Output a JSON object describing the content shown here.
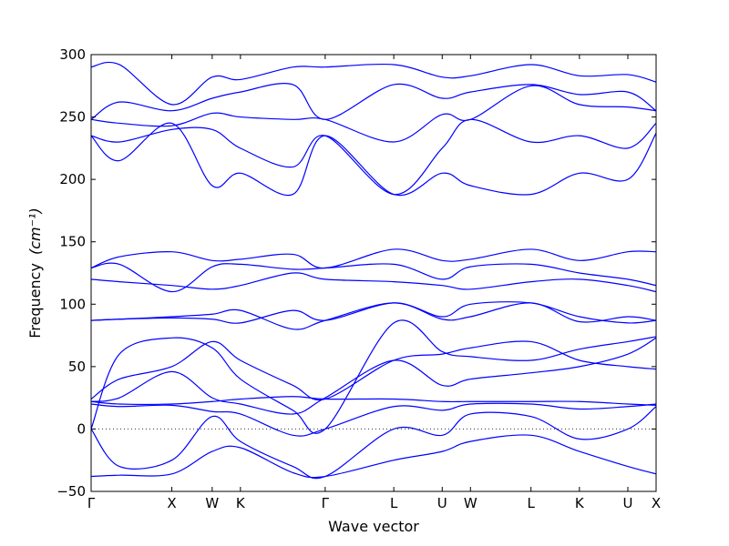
{
  "chart_data": {
    "type": "line",
    "xlabel": "Wave vector",
    "ylabel": "Frequency",
    "ylabel_unit": "(cm⁻¹)",
    "ylim": [
      -50,
      300
    ],
    "yticks": [
      -50,
      0,
      50,
      100,
      150,
      200,
      250,
      300
    ],
    "xlim": [
      0,
      14.0
    ],
    "special_points": [
      {
        "label": "Γ",
        "x": 0.0
      },
      {
        "label": "X",
        "x": 2.0
      },
      {
        "label": "W",
        "x": 3.0
      },
      {
        "label": "K",
        "x": 3.7
      },
      {
        "label": "Γ",
        "x": 5.8
      },
      {
        "label": "L",
        "x": 7.5
      },
      {
        "label": "U",
        "x": 8.7
      },
      {
        "label": "W",
        "x": 9.4
      },
      {
        "label": "L",
        "x": 10.9
      },
      {
        "label": "K",
        "x": 12.1
      },
      {
        "label": "U",
        "x": 13.3
      },
      {
        "label": "X",
        "x": 14.0
      }
    ],
    "grid": false,
    "zero_line": true,
    "series_color": "#0000ff",
    "series": [
      {
        "x": [
          0,
          0.7,
          2.0,
          3.0,
          3.7,
          5.0,
          5.8,
          7.5,
          8.7,
          9.4,
          10.9,
          12.1,
          13.3,
          14.0
        ],
        "y": [
          -38,
          -37,
          -36,
          -18,
          -15,
          -35,
          -38,
          -25,
          -18,
          -10,
          -5,
          -18,
          -30,
          -36
        ]
      },
      {
        "x": [
          0,
          0.7,
          2.0,
          3.0,
          3.7,
          5.0,
          5.8,
          7.5,
          8.7,
          9.4,
          10.9,
          12.1,
          13.3,
          14.0
        ],
        "y": [
          0,
          -30,
          -25,
          10,
          -10,
          -30,
          -38,
          0,
          -5,
          12,
          10,
          -8,
          0,
          18
        ]
      },
      {
        "x": [
          0,
          0.7,
          2.0,
          3.0,
          3.7,
          5.0,
          5.8,
          7.5,
          8.7,
          9.4,
          10.9,
          12.1,
          13.3,
          14.0
        ],
        "y": [
          20,
          18,
          19,
          14,
          12,
          -5,
          0,
          18,
          15,
          20,
          20,
          16,
          18,
          20
        ]
      },
      {
        "x": [
          0,
          0.7,
          2.0,
          3.0,
          3.7,
          5.0,
          5.8,
          7.5,
          8.7,
          9.4,
          10.9,
          12.1,
          13.3,
          14.0
        ],
        "y": [
          22,
          20,
          20,
          22,
          24,
          26,
          24,
          24,
          22,
          22,
          22,
          22,
          20,
          19
        ]
      },
      {
        "x": [
          0,
          0.7,
          2.0,
          3.0,
          3.7,
          5.0,
          5.8,
          7.5,
          8.7,
          9.4,
          10.9,
          12.1,
          13.3,
          14.0
        ],
        "y": [
          22,
          25,
          46,
          25,
          20,
          12,
          25,
          55,
          35,
          40,
          45,
          50,
          60,
          73
        ]
      },
      {
        "x": [
          0,
          0.7,
          2.0,
          3.0,
          3.7,
          5.0,
          5.8,
          7.5,
          8.7,
          9.4,
          10.9,
          12.1,
          13.3,
          14.0
        ],
        "y": [
          24,
          40,
          50,
          70,
          55,
          35,
          24,
          55,
          60,
          65,
          70,
          55,
          50,
          48
        ]
      },
      {
        "x": [
          0,
          0.7,
          2.0,
          3.0,
          3.7,
          5.0,
          5.8,
          7.5,
          8.7,
          9.4,
          10.9,
          12.1,
          13.3,
          14.0
        ],
        "y": [
          0,
          60,
          73,
          65,
          40,
          15,
          0,
          85,
          62,
          58,
          55,
          64,
          70,
          74
        ]
      },
      {
        "x": [
          0,
          0.7,
          2.0,
          3.0,
          3.7,
          5.0,
          5.8,
          7.5,
          8.7,
          9.4,
          10.9,
          12.1,
          13.3,
          14.0
        ],
        "y": [
          87,
          88,
          90,
          92,
          95,
          80,
          87,
          101,
          88,
          90,
          101,
          86,
          90,
          87
        ]
      },
      {
        "x": [
          0,
          0.7,
          2.0,
          3.0,
          3.7,
          5.0,
          5.8,
          7.5,
          8.7,
          9.4,
          10.9,
          12.1,
          13.3,
          14.0
        ],
        "y": [
          87,
          88,
          89,
          88,
          85,
          95,
          87,
          101,
          90,
          100,
          101,
          90,
          85,
          87
        ]
      },
      {
        "x": [
          0,
          0.7,
          2.0,
          3.0,
          3.7,
          5.0,
          5.8,
          7.5,
          8.7,
          9.4,
          10.9,
          12.1,
          13.3,
          14.0
        ],
        "y": [
          120,
          118,
          115,
          112,
          115,
          125,
          120,
          118,
          115,
          112,
          118,
          120,
          115,
          110
        ]
      },
      {
        "x": [
          0,
          0.7,
          2.0,
          3.0,
          3.7,
          5.0,
          5.8,
          7.5,
          8.7,
          9.4,
          10.9,
          12.1,
          13.3,
          14.0
        ],
        "y": [
          129,
          132,
          110,
          130,
          132,
          128,
          129,
          132,
          120,
          130,
          132,
          125,
          120,
          115
        ]
      },
      {
        "x": [
          0,
          0.7,
          2.0,
          3.0,
          3.7,
          5.0,
          5.8,
          7.5,
          8.7,
          9.4,
          10.9,
          12.1,
          13.3,
          14.0
        ],
        "y": [
          129,
          138,
          142,
          135,
          136,
          140,
          129,
          144,
          135,
          136,
          144,
          135,
          142,
          142
        ]
      },
      {
        "x": [
          0,
          0.7,
          2.0,
          3.0,
          3.7,
          5.0,
          5.8,
          7.5,
          8.7,
          9.4,
          10.9,
          12.1,
          13.3,
          14.0
        ],
        "y": [
          235,
          215,
          245,
          195,
          205,
          188,
          235,
          188,
          205,
          195,
          188,
          205,
          200,
          237
        ]
      },
      {
        "x": [
          0,
          0.7,
          2.0,
          3.0,
          3.7,
          5.0,
          5.8,
          7.5,
          8.7,
          9.4,
          10.9,
          12.1,
          13.3,
          14.0
        ],
        "y": [
          235,
          230,
          240,
          240,
          225,
          210,
          235,
          188,
          225,
          248,
          230,
          235,
          225,
          245
        ]
      },
      {
        "x": [
          0,
          0.7,
          2.0,
          3.0,
          3.7,
          5.0,
          5.8,
          7.5,
          8.7,
          9.4,
          10.9,
          12.1,
          13.3,
          14.0
        ],
        "y": [
          248,
          245,
          243,
          253,
          250,
          248,
          248,
          230,
          252,
          248,
          275,
          260,
          258,
          255
        ]
      },
      {
        "x": [
          0,
          0.7,
          2.0,
          3.0,
          3.7,
          5.0,
          5.8,
          7.5,
          8.7,
          9.4,
          10.9,
          12.1,
          13.3,
          14.0
        ],
        "y": [
          248,
          262,
          255,
          265,
          270,
          276,
          248,
          276,
          265,
          270,
          276,
          268,
          270,
          255
        ]
      },
      {
        "x": [
          0,
          0.7,
          2.0,
          3.0,
          3.7,
          5.0,
          5.8,
          7.5,
          8.7,
          9.4,
          10.9,
          12.1,
          13.3,
          14.0
        ],
        "y": [
          290,
          292,
          260,
          282,
          280,
          290,
          290,
          292,
          282,
          283,
          292,
          283,
          284,
          278
        ]
      }
    ]
  }
}
